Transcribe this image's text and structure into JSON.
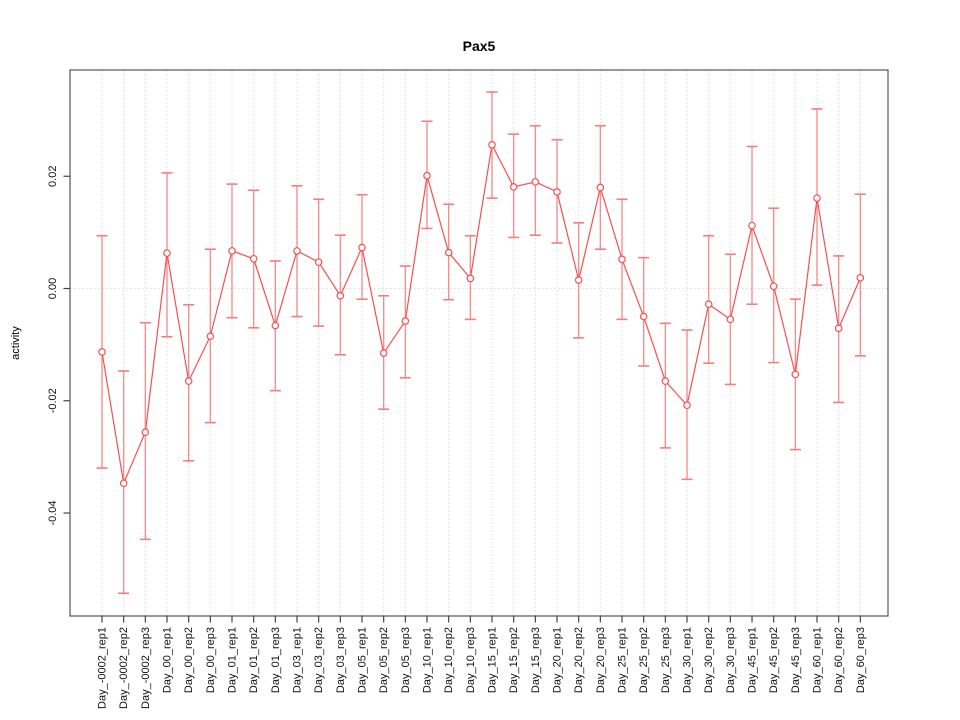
{
  "title": "Pax5",
  "axes": {
    "ylabel": "activity",
    "xlabel": "",
    "ytick_labels": [
      "0.02",
      "0.00",
      "-0.02",
      "-0.04"
    ],
    "yticks": [
      0.02,
      0.0,
      -0.02,
      -0.04
    ]
  },
  "colors": {
    "line": "#f84f4f",
    "marker_stroke": "#f84f4f",
    "error_bar": "#f57d7d",
    "error_bar_stem": "rgba(247,106,106,0.72)",
    "grid": "#d7d7d7",
    "zero_line": "#dadada",
    "box": "#555555",
    "tick": "#444444",
    "text": "#111111"
  },
  "chart_data": {
    "type": "line",
    "title": "Pax5",
    "ylabel": "activity",
    "xlabel": "",
    "legend": "none",
    "grid": "vertical dotted gridlines at each category; dotted horizontal line at y=0",
    "marker": "open-circle",
    "error_bars": true,
    "ylim": [
      -0.058,
      0.037
    ],
    "yticks": [
      -0.04,
      -0.02,
      0.0,
      0.02
    ],
    "categories": [
      "Day_-0002_rep1",
      "Day_-0002_rep2",
      "Day_-0002_rep3",
      "Day_00_rep1",
      "Day_00_rep2",
      "Day_00_rep3",
      "Day_01_rep1",
      "Day_01_rep2",
      "Day_01_rep3",
      "Day_03_rep1",
      "Day_03_rep2",
      "Day_03_rep3",
      "Day_05_rep1",
      "Day_05_rep2",
      "Day_05_rep3",
      "Day_10_rep1",
      "Day_10_rep2",
      "Day_10_rep3",
      "Day_15_rep1",
      "Day_15_rep2",
      "Day_15_rep3",
      "Day_20_rep1",
      "Day_20_rep2",
      "Day_20_rep3",
      "Day_25_rep1",
      "Day_25_rep2",
      "Day_25_rep3",
      "Day_30_rep1",
      "Day_30_rep2",
      "Day_30_rep3",
      "Day_45_rep1",
      "Day_45_rep2",
      "Day_45_rep3",
      "Day_60_rep1",
      "Day_60_rep2",
      "Day_60_rep3"
    ],
    "series": [
      {
        "name": "activity",
        "values": [
          -0.0113,
          -0.0347,
          -0.0256,
          0.0063,
          -0.0165,
          -0.0085,
          0.0067,
          0.0053,
          -0.0066,
          0.0067,
          0.0047,
          -0.0013,
          0.0073,
          -0.0115,
          -0.0058,
          0.0201,
          0.0064,
          0.0018,
          0.0256,
          0.0181,
          0.019,
          0.0172,
          0.0015,
          0.018,
          0.0052,
          -0.005,
          -0.0165,
          -0.0208,
          -0.0028,
          -0.0055,
          0.0112,
          0.0004,
          -0.0153,
          0.0161,
          -0.0071,
          0.0019
        ],
        "upper": [
          0.0094,
          -0.0147,
          -0.0061,
          0.0206,
          -0.0029,
          0.007,
          0.0186,
          0.0175,
          0.0049,
          0.0183,
          0.0159,
          0.0095,
          0.0167,
          -0.0013,
          0.004,
          0.0298,
          0.015,
          0.0094,
          0.035,
          0.0275,
          0.029,
          0.0265,
          0.0117,
          0.029,
          0.0159,
          0.0055,
          -0.0062,
          -0.0074,
          0.0094,
          0.0061,
          0.0253,
          0.0143,
          -0.0019,
          0.032,
          0.0058,
          0.0168
        ],
        "lower": [
          -0.032,
          -0.0543,
          -0.0447,
          -0.0086,
          -0.0307,
          -0.0239,
          -0.0052,
          -0.007,
          -0.0182,
          -0.005,
          -0.0067,
          -0.0118,
          -0.0019,
          -0.0215,
          -0.0159,
          0.0107,
          -0.002,
          -0.0055,
          0.0161,
          0.0091,
          0.0095,
          0.0081,
          -0.0088,
          0.007,
          -0.0055,
          -0.0138,
          -0.0284,
          -0.034,
          -0.0133,
          -0.0171,
          -0.0028,
          -0.0132,
          -0.0287,
          0.0006,
          -0.0203,
          -0.012
        ]
      }
    ]
  }
}
